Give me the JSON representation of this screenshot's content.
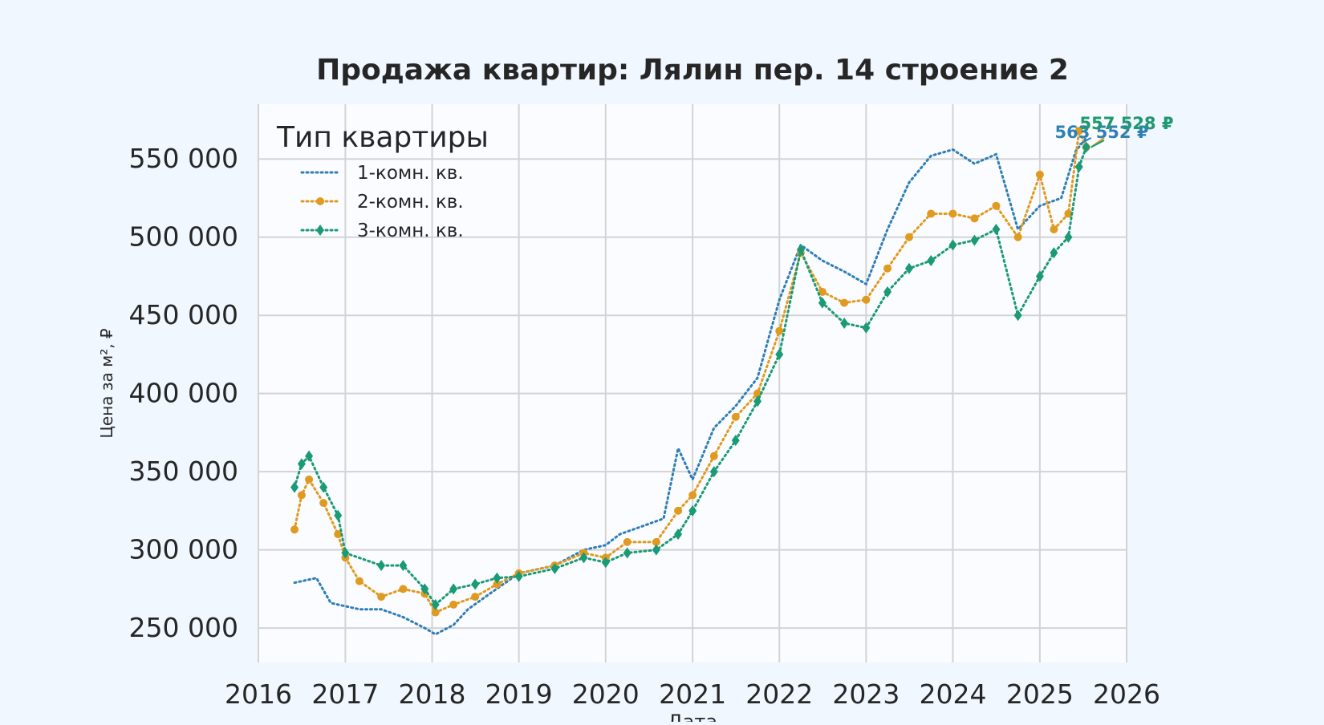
{
  "chart_data": {
    "type": "line",
    "title": "Продажа квартир: Лялин пер. 14 строение 2",
    "xlabel": "Дата",
    "ylabel": "Цена за м², ₽",
    "x_axis": "date",
    "xlim": [
      "2016-01-01",
      "2026-01-01"
    ],
    "ylim": [
      228000,
      585000
    ],
    "x_ticks": [
      "2016",
      "2017",
      "2018",
      "2019",
      "2020",
      "2021",
      "2022",
      "2023",
      "2024",
      "2025",
      "2026"
    ],
    "y_ticks": [
      "250 000",
      "300 000",
      "350 000",
      "400 000",
      "450 000",
      "500 000",
      "550 000"
    ],
    "y_tick_values": [
      250000,
      300000,
      350000,
      400000,
      450000,
      500000,
      550000
    ],
    "grid": true,
    "legend": {
      "title": "Тип квартиры",
      "position": "top-left"
    },
    "series": [
      {
        "name": "1-комн. кв.",
        "color": "#2f7fb5",
        "marker": "none",
        "line_style": "dotted",
        "end_label": "563 552 ₽",
        "points": [
          [
            "2016-06-01",
            279000
          ],
          [
            "2016-09-01",
            282000
          ],
          [
            "2016-11-01",
            266000
          ],
          [
            "2017-03-01",
            262000
          ],
          [
            "2017-06-01",
            262000
          ],
          [
            "2017-09-01",
            257000
          ],
          [
            "2017-12-01",
            250000
          ],
          [
            "2018-01-15",
            246000
          ],
          [
            "2018-04-01",
            252000
          ],
          [
            "2018-06-01",
            262000
          ],
          [
            "2018-09-01",
            272000
          ],
          [
            "2019-01-01",
            285000
          ],
          [
            "2019-06-01",
            290000
          ],
          [
            "2019-10-01",
            300000
          ],
          [
            "2020-01-01",
            303000
          ],
          [
            "2020-03-01",
            310000
          ],
          [
            "2020-06-01",
            315000
          ],
          [
            "2020-09-01",
            320000
          ],
          [
            "2020-11-01",
            365000
          ],
          [
            "2021-01-01",
            345000
          ],
          [
            "2021-04-01",
            378000
          ],
          [
            "2021-07-01",
            392000
          ],
          [
            "2021-10-01",
            410000
          ],
          [
            "2022-01-01",
            460000
          ],
          [
            "2022-04-01",
            495000
          ],
          [
            "2022-07-01",
            485000
          ],
          [
            "2022-10-01",
            478000
          ],
          [
            "2023-01-01",
            470000
          ],
          [
            "2023-04-01",
            505000
          ],
          [
            "2023-07-01",
            535000
          ],
          [
            "2023-10-01",
            552000
          ],
          [
            "2024-01-01",
            556000
          ],
          [
            "2024-04-01",
            547000
          ],
          [
            "2024-07-01",
            553000
          ],
          [
            "2024-10-01",
            505000
          ],
          [
            "2025-01-01",
            520000
          ],
          [
            "2025-04-01",
            525000
          ],
          [
            "2025-06-01",
            555000
          ],
          [
            "2025-07-15",
            563552
          ]
        ]
      },
      {
        "name": "2-комн. кв.",
        "color": "#e09a1f",
        "marker": "circle",
        "line_style": "dotted",
        "end_label": "557 528 ₽",
        "points": [
          [
            "2016-06-01",
            313000
          ],
          [
            "2016-07-01",
            335000
          ],
          [
            "2016-08-01",
            345000
          ],
          [
            "2016-10-01",
            330000
          ],
          [
            "2016-12-01",
            310000
          ],
          [
            "2017-01-01",
            295000
          ],
          [
            "2017-03-01",
            280000
          ],
          [
            "2017-06-01",
            270000
          ],
          [
            "2017-09-01",
            275000
          ],
          [
            "2017-12-01",
            272000
          ],
          [
            "2018-01-15",
            260000
          ],
          [
            "2018-04-01",
            265000
          ],
          [
            "2018-07-01",
            270000
          ],
          [
            "2018-10-01",
            278000
          ],
          [
            "2019-01-01",
            285000
          ],
          [
            "2019-06-01",
            290000
          ],
          [
            "2019-10-01",
            298000
          ],
          [
            "2020-01-01",
            295000
          ],
          [
            "2020-04-01",
            305000
          ],
          [
            "2020-08-01",
            305000
          ],
          [
            "2020-11-01",
            325000
          ],
          [
            "2021-01-01",
            335000
          ],
          [
            "2021-04-01",
            360000
          ],
          [
            "2021-07-01",
            385000
          ],
          [
            "2021-10-01",
            400000
          ],
          [
            "2022-01-01",
            440000
          ],
          [
            "2022-04-01",
            490000
          ],
          [
            "2022-07-01",
            465000
          ],
          [
            "2022-10-01",
            458000
          ],
          [
            "2023-01-01",
            460000
          ],
          [
            "2023-04-01",
            480000
          ],
          [
            "2023-07-01",
            500000
          ],
          [
            "2023-10-01",
            515000
          ],
          [
            "2024-01-01",
            515000
          ],
          [
            "2024-04-01",
            512000
          ],
          [
            "2024-07-01",
            520000
          ],
          [
            "2024-10-01",
            500000
          ],
          [
            "2025-01-01",
            540000
          ],
          [
            "2025-03-01",
            505000
          ],
          [
            "2025-05-01",
            515000
          ],
          [
            "2025-06-15",
            568000
          ],
          [
            "2025-07-15",
            557528
          ]
        ]
      },
      {
        "name": "3-комн. кв.",
        "color": "#1a9a76",
        "marker": "diamond",
        "line_style": "dotted",
        "end_label": "557 528 ₽",
        "points": [
          [
            "2016-06-01",
            340000
          ],
          [
            "2016-07-01",
            355000
          ],
          [
            "2016-08-01",
            360000
          ],
          [
            "2016-10-01",
            340000
          ],
          [
            "2016-12-01",
            322000
          ],
          [
            "2017-01-01",
            298000
          ],
          [
            "2017-06-01",
            290000
          ],
          [
            "2017-09-01",
            290000
          ],
          [
            "2017-12-01",
            275000
          ],
          [
            "2018-01-15",
            265000
          ],
          [
            "2018-04-01",
            275000
          ],
          [
            "2018-07-01",
            278000
          ],
          [
            "2018-10-01",
            282000
          ],
          [
            "2019-01-01",
            283000
          ],
          [
            "2019-06-01",
            288000
          ],
          [
            "2019-10-01",
            295000
          ],
          [
            "2020-01-01",
            292000
          ],
          [
            "2020-04-01",
            298000
          ],
          [
            "2020-08-01",
            300000
          ],
          [
            "2020-11-01",
            310000
          ],
          [
            "2021-01-01",
            325000
          ],
          [
            "2021-04-01",
            350000
          ],
          [
            "2021-07-01",
            370000
          ],
          [
            "2021-10-01",
            395000
          ],
          [
            "2022-01-01",
            425000
          ],
          [
            "2022-04-01",
            492000
          ],
          [
            "2022-07-01",
            458000
          ],
          [
            "2022-10-01",
            445000
          ],
          [
            "2023-01-01",
            442000
          ],
          [
            "2023-04-01",
            465000
          ],
          [
            "2023-07-01",
            480000
          ],
          [
            "2023-10-01",
            485000
          ],
          [
            "2024-01-01",
            495000
          ],
          [
            "2024-04-01",
            498000
          ],
          [
            "2024-07-01",
            505000
          ],
          [
            "2024-10-01",
            450000
          ],
          [
            "2025-01-01",
            475000
          ],
          [
            "2025-03-01",
            490000
          ],
          [
            "2025-05-01",
            500000
          ],
          [
            "2025-06-15",
            545000
          ],
          [
            "2025-07-15",
            557528
          ]
        ]
      }
    ]
  }
}
